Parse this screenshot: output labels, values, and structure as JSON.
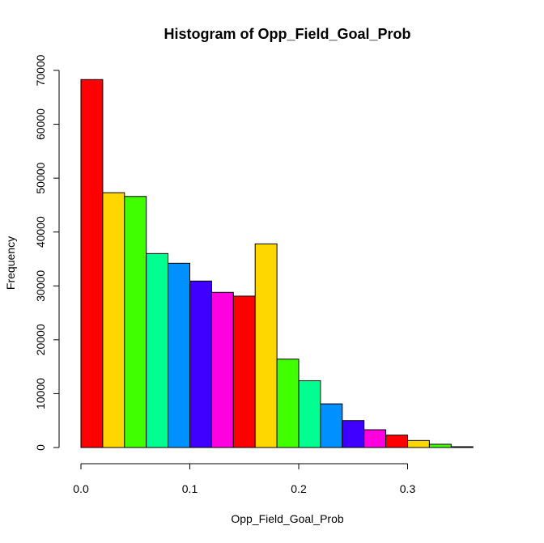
{
  "chart_data": {
    "type": "bar",
    "title": "Histogram of Opp_Field_Goal_Prob",
    "xlabel": "Opp_Field_Goal_Prob",
    "ylabel": "Frequency",
    "bin_width": 0.02,
    "x_start": 0.0,
    "x_ticks": [
      "0.0",
      "0.1",
      "0.2",
      "0.3"
    ],
    "x_tick_values": [
      0.0,
      0.1,
      0.2,
      0.3
    ],
    "y_ticks": [
      "0",
      "10000",
      "20000",
      "30000",
      "40000",
      "50000",
      "60000",
      "70000"
    ],
    "y_tick_values": [
      0,
      10000,
      20000,
      30000,
      40000,
      50000,
      60000,
      70000
    ],
    "ylim": [
      0,
      70000
    ],
    "grid": false,
    "categories": [
      "0.00-0.02",
      "0.02-0.04",
      "0.04-0.06",
      "0.06-0.08",
      "0.08-0.10",
      "0.10-0.12",
      "0.12-0.14",
      "0.14-0.16",
      "0.16-0.18",
      "0.18-0.20",
      "0.20-0.22",
      "0.22-0.24",
      "0.24-0.26",
      "0.26-0.28",
      "0.28-0.30",
      "0.30-0.32",
      "0.32-0.34",
      "0.34-0.36"
    ],
    "values": [
      68300,
      47300,
      46600,
      36000,
      34200,
      30900,
      28800,
      28100,
      37800,
      16400,
      12400,
      8100,
      5000,
      3300,
      2300,
      1300,
      600,
      150
    ],
    "colors": [
      "#FF0000",
      "#FFD700",
      "#40FF00",
      "#00FF90",
      "#0090FF",
      "#4000FF",
      "#FF00DF",
      "#FF0000",
      "#FFD700",
      "#40FF00",
      "#00FF90",
      "#0090FF",
      "#4000FF",
      "#FF00DF",
      "#FF0000",
      "#FFD700",
      "#40FF00",
      "#00FF90"
    ]
  }
}
